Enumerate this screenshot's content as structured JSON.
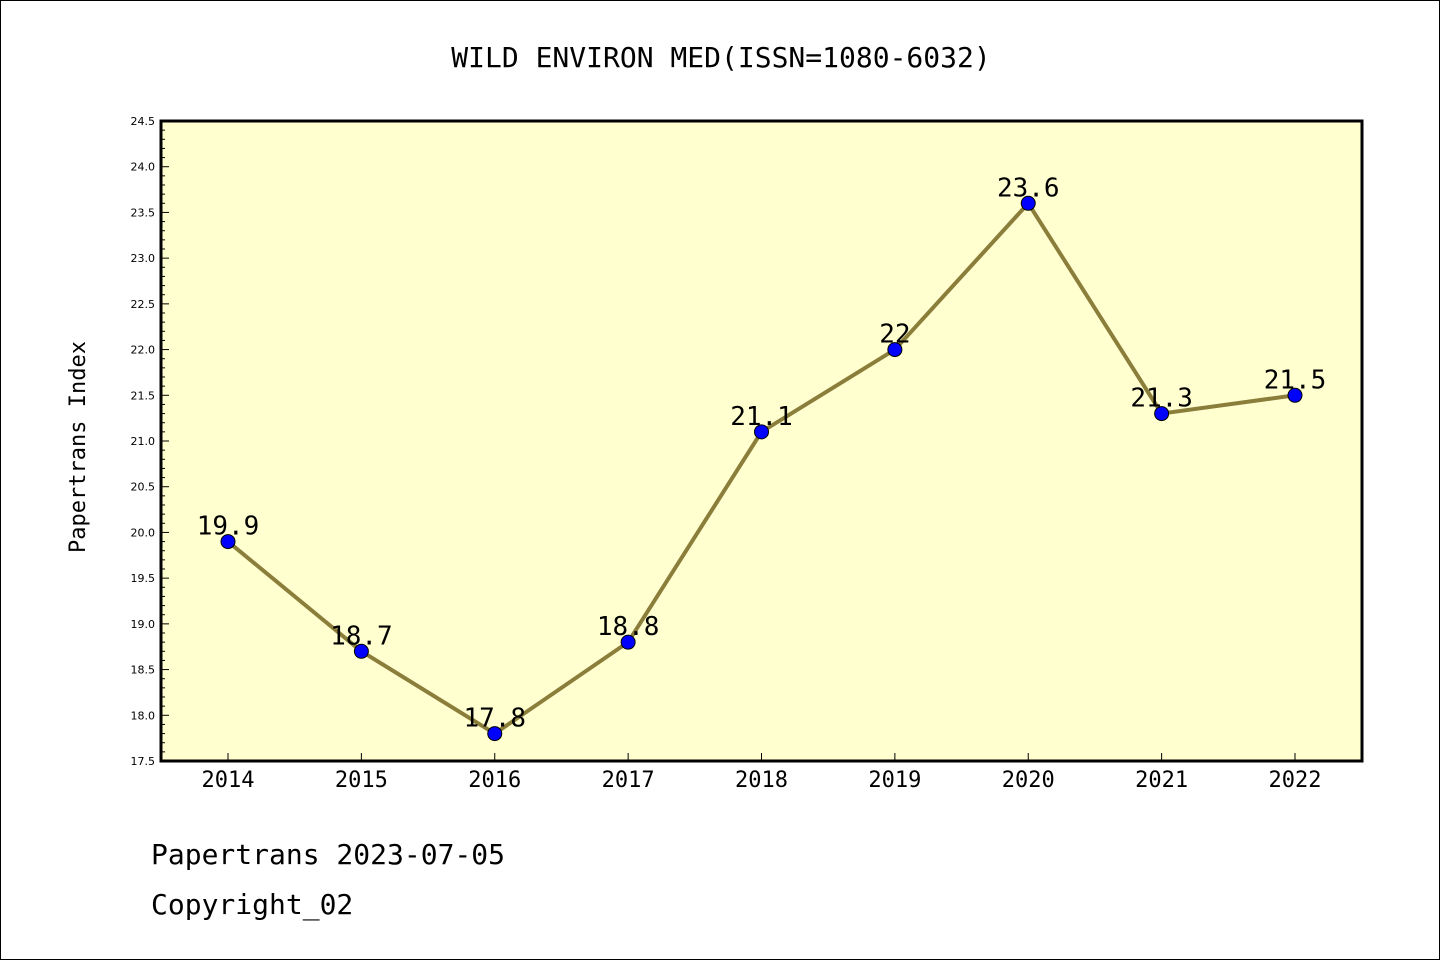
{
  "chart_data": {
    "type": "line",
    "title": "WILD ENVIRON MED(ISSN=1080-6032)",
    "xlabel": "",
    "ylabel": "Papertrans Index",
    "categories": [
      "2014",
      "2015",
      "2016",
      "2017",
      "2018",
      "2019",
      "2020",
      "2021",
      "2022"
    ],
    "series": [
      {
        "values": [
          19.9,
          18.7,
          17.8,
          18.8,
          21.1,
          22,
          23.6,
          21.3,
          21.5
        ]
      }
    ],
    "data_labels": [
      "19.9",
      "18.7",
      "17.8",
      "18.8",
      "21.1",
      "22",
      "23.6",
      "21.3",
      "21.5"
    ],
    "ylim": [
      17.5,
      24.5
    ],
    "yticks": [
      "17.5",
      "18.0",
      "18.5",
      "19.0",
      "19.5",
      "20.0",
      "20.5",
      "21.0",
      "21.5",
      "22.0",
      "22.5",
      "23.0",
      "23.5",
      "24.0",
      "24.5"
    ],
    "grid": false,
    "colors": {
      "plot_background": "#ffffd0",
      "line": "#8b7d3a",
      "marker": "#0000ff"
    }
  },
  "footer": {
    "line1": "Papertrans 2023-07-05",
    "line2": "Copyright_02"
  }
}
